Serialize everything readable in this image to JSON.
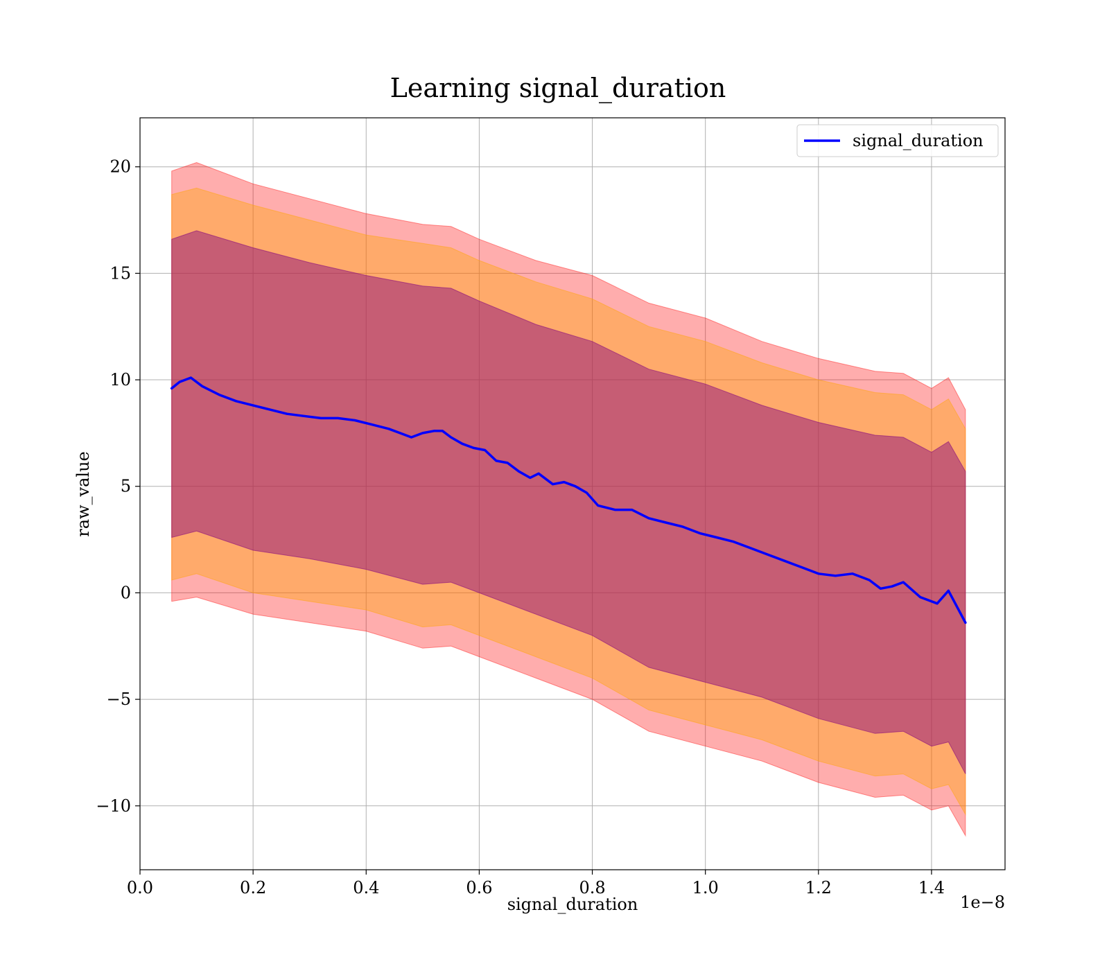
{
  "chart_data": {
    "type": "line",
    "title": "Learning signal_duration",
    "xlabel": "signal_duration",
    "ylabel": "raw_value",
    "x_offset_label": "1e−8",
    "xlim": [
      0,
      1.53e-08
    ],
    "ylim": [
      -13,
      22.3
    ],
    "x_ticks": [
      0,
      2e-09,
      4e-09,
      6e-09,
      8e-09,
      1e-08,
      1.2e-08,
      1.4e-08
    ],
    "x_tick_labels": [
      "0.0",
      "0.2",
      "0.4",
      "0.6",
      "0.8",
      "1.0",
      "1.2",
      "1.4"
    ],
    "y_ticks": [
      -10,
      -5,
      0,
      5,
      10,
      15,
      20
    ],
    "y_tick_labels": [
      "−10",
      "−5",
      "0",
      "5",
      "10",
      "15",
      "20"
    ],
    "grid": true,
    "legend": {
      "placement": "top-right"
    },
    "series": [
      {
        "name": "signal_duration",
        "color": "#0000ff",
        "x": [
          5.6e-10,
          7e-10,
          9e-10,
          1.1e-09,
          1.4e-09,
          1.7e-09,
          2e-09,
          2.3e-09,
          2.6e-09,
          2.9e-09,
          3.2e-09,
          3.5e-09,
          3.8e-09,
          4.1e-09,
          4.4e-09,
          4.6e-09,
          4.8e-09,
          5e-09,
          5.2e-09,
          5.35e-09,
          5.5e-09,
          5.7e-09,
          5.9e-09,
          6.1e-09,
          6.3e-09,
          6.5e-09,
          6.7e-09,
          6.9e-09,
          7.05e-09,
          7.3e-09,
          7.5e-09,
          7.7e-09,
          7.9e-09,
          8.1e-09,
          8.4e-09,
          8.7e-09,
          9e-09,
          9.3e-09,
          9.6e-09,
          9.9e-09,
          1.02e-08,
          1.05e-08,
          1.08e-08,
          1.11e-08,
          1.14e-08,
          1.17e-08,
          1.2e-08,
          1.23e-08,
          1.26e-08,
          1.29e-08,
          1.31e-08,
          1.33e-08,
          1.35e-08,
          1.38e-08,
          1.41e-08,
          1.43e-08,
          1.46e-08
        ],
        "values": [
          9.6,
          9.9,
          10.1,
          9.7,
          9.3,
          9.0,
          8.8,
          8.6,
          8.4,
          8.3,
          8.2,
          8.2,
          8.1,
          7.9,
          7.7,
          7.5,
          7.3,
          7.5,
          7.6,
          7.6,
          7.3,
          7.0,
          6.8,
          6.7,
          6.2,
          6.1,
          5.7,
          5.4,
          5.6,
          5.1,
          5.2,
          5.0,
          4.7,
          4.1,
          3.9,
          3.9,
          3.5,
          3.3,
          3.1,
          2.8,
          2.6,
          2.4,
          2.1,
          1.8,
          1.5,
          1.2,
          0.9,
          0.8,
          0.9,
          0.6,
          0.2,
          0.3,
          0.5,
          -0.2,
          -0.5,
          0.1,
          -1.4
        ]
      }
    ],
    "bands": [
      {
        "color": "#ff0000",
        "opacity": 0.32,
        "x": [
          5.6e-10,
          1e-09,
          2e-09,
          3e-09,
          4e-09,
          5e-09,
          5.5e-09,
          6e-09,
          7e-09,
          8e-09,
          9e-09,
          1e-08,
          1.1e-08,
          1.2e-08,
          1.3e-08,
          1.35e-08,
          1.4e-08,
          1.43e-08,
          1.46e-08
        ],
        "upper": [
          19.8,
          20.2,
          19.2,
          18.5,
          17.8,
          17.3,
          17.2,
          16.6,
          15.6,
          14.9,
          13.6,
          12.9,
          11.8,
          11.0,
          10.4,
          10.3,
          9.6,
          10.1,
          8.6
        ],
        "lower": [
          -0.4,
          -0.2,
          -1.0,
          -1.4,
          -1.8,
          -2.6,
          -2.5,
          -3.0,
          -4.0,
          -5.0,
          -6.5,
          -7.2,
          -7.9,
          -8.9,
          -9.6,
          -9.5,
          -10.2,
          -10.0,
          -11.4
        ]
      },
      {
        "color": "#ffa500",
        "opacity": 0.38,
        "x": [
          5.6e-10,
          1e-09,
          2e-09,
          3e-09,
          4e-09,
          5e-09,
          5.5e-09,
          6e-09,
          7e-09,
          8e-09,
          9e-09,
          1e-08,
          1.1e-08,
          1.2e-08,
          1.3e-08,
          1.35e-08,
          1.4e-08,
          1.43e-08,
          1.46e-08
        ],
        "upper": [
          18.7,
          19.0,
          18.2,
          17.5,
          16.8,
          16.4,
          16.2,
          15.6,
          14.6,
          13.8,
          12.5,
          11.8,
          10.8,
          10.0,
          9.4,
          9.3,
          8.6,
          9.1,
          7.7
        ],
        "lower": [
          0.6,
          0.9,
          0.0,
          -0.4,
          -0.8,
          -1.6,
          -1.5,
          -2.0,
          -3.0,
          -4.0,
          -5.5,
          -6.2,
          -6.9,
          -7.9,
          -8.6,
          -8.5,
          -9.2,
          -9.0,
          -10.4
        ]
      },
      {
        "color": "#800080",
        "opacity": 0.45,
        "x": [
          5.6e-10,
          1e-09,
          2e-09,
          3e-09,
          4e-09,
          5e-09,
          5.5e-09,
          6e-09,
          7e-09,
          8e-09,
          9e-09,
          1e-08,
          1.1e-08,
          1.2e-08,
          1.3e-08,
          1.35e-08,
          1.4e-08,
          1.43e-08,
          1.46e-08
        ],
        "upper": [
          16.6,
          17.0,
          16.2,
          15.5,
          14.9,
          14.4,
          14.3,
          13.7,
          12.6,
          11.8,
          10.5,
          9.8,
          8.8,
          8.0,
          7.4,
          7.3,
          6.6,
          7.1,
          5.7
        ],
        "lower": [
          2.6,
          2.9,
          2.0,
          1.6,
          1.1,
          0.4,
          0.5,
          0.0,
          -1.0,
          -2.0,
          -3.5,
          -4.2,
          -4.9,
          -5.9,
          -6.6,
          -6.5,
          -7.2,
          -7.0,
          -8.5
        ]
      }
    ]
  }
}
